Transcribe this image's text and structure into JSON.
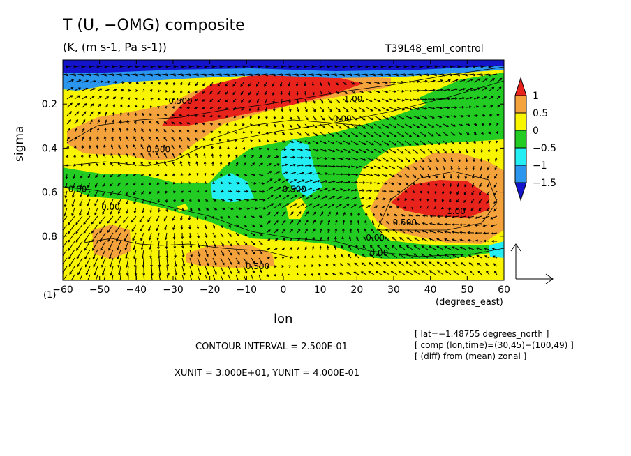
{
  "header": {
    "title": "T (U, −OMG) composite",
    "units": "(K, (m s-1, Pa s-1))",
    "run": "T39L48_eml_control"
  },
  "axes": {
    "ylabel": "sigma",
    "xlabel": "lon",
    "xunits": "(degrees_east)",
    "corner_label": "(1)"
  },
  "info": [
    "[ lat=−1.48755 degrees_north ]",
    "[ comp (lon,time)=(30,45)−(100,49) ]",
    "[ (diff) from (mean) zonal ]"
  ],
  "footer": {
    "contour_interval": "CONTOUR INTERVAL = 2.500E-01",
    "xyunit": "XUNIT = 3.000E+01, YUNIT = 4.000E-01"
  },
  "chart_data": {
    "type": "heatmap",
    "title": "T (U, −OMG) composite",
    "xlabel": "lon",
    "ylabel": "sigma",
    "xlim": [
      -60,
      60
    ],
    "ylim": [
      1.0,
      0.0
    ],
    "x_ticks": [
      -60,
      -50,
      -40,
      -30,
      -20,
      -10,
      0,
      10,
      20,
      30,
      40,
      50,
      60
    ],
    "x_tick_labels": [
      "−60",
      "−50",
      "−40",
      "−30",
      "−20",
      "−10",
      "0",
      "10",
      "20",
      "30",
      "40",
      "50",
      "60"
    ],
    "y_ticks": [
      0.2,
      0.4,
      0.6,
      0.8
    ],
    "y_tick_labels": [
      "0.2",
      "0.4",
      "0.6",
      "0.8"
    ],
    "contour_interval": 0.25,
    "colorbar": {
      "labels": [
        "1",
        "0.5",
        "0",
        "−0.5",
        "−1",
        "−1.5"
      ],
      "levels": [
        1,
        0.5,
        0,
        -0.5,
        -1,
        -1.5
      ],
      "colors": [
        "#e8231c",
        "#f4a23c",
        "#f9f400",
        "#22cc22",
        "#22eef4",
        "#2a96ee",
        "#1414cc"
      ]
    },
    "fill_colors": {
      "red": "#e8231c",
      "orange": "#f4a23c",
      "yellow": "#f9f400",
      "green": "#22cc22",
      "cyan": "#22eef4",
      "blue": "#2a96ee",
      "navy": "#1414cc"
    },
    "contour_labels": [
      {
        "text": "0.500",
        "lon": -28,
        "sigma": 0.2
      },
      {
        "text": "1.00",
        "lon": 19,
        "sigma": 0.19
      },
      {
        "text": "0.00",
        "lon": 16,
        "sigma": 0.28
      },
      {
        "text": "0.500",
        "lon": -34,
        "sigma": 0.42
      },
      {
        "text": "0.500",
        "lon": 3,
        "sigma": 0.6
      },
      {
        "text": "0.00",
        "lon": -56,
        "sigma": 0.6
      },
      {
        "text": "0.00",
        "lon": -47,
        "sigma": 0.68
      },
      {
        "text": "0.500",
        "lon": 33,
        "sigma": 0.75
      },
      {
        "text": "1.00",
        "lon": 47,
        "sigma": 0.7
      },
      {
        "text": "0.00",
        "lon": 25,
        "sigma": 0.82
      },
      {
        "text": "0.00",
        "lon": 26,
        "sigma": 0.89
      },
      {
        "text": "0.500",
        "lon": -7,
        "sigma": 0.95
      }
    ],
    "vector_reference": {
      "x_unit": 30.0,
      "y_unit": 0.4
    }
  }
}
